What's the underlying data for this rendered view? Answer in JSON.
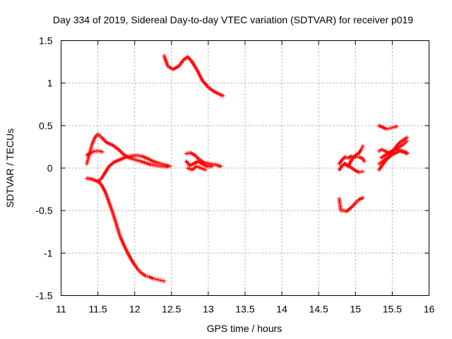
{
  "chart_data": {
    "type": "scatter",
    "title": "Day 334 of 2019, Sidereal Day-to-day VTEC variation (SDTVAR) for receiver p019",
    "xlabel": "GPS time / hours",
    "ylabel": "SDTVAR / TECUs",
    "xlim": [
      11,
      16
    ],
    "ylim": [
      -1.5,
      1.5
    ],
    "grid": true,
    "marker": "plus",
    "color": "#ff0000",
    "x_ticks": [
      11,
      11.5,
      12,
      12.5,
      13,
      13.5,
      14,
      14.5,
      15,
      15.5,
      16
    ],
    "x_tick_labels": [
      "11",
      "11.5",
      "12",
      "12.5",
      "13",
      "13.5",
      "14",
      "14.5",
      "15",
      "15.5",
      "16"
    ],
    "y_ticks": [
      -1.5,
      -1,
      -0.5,
      0,
      0.5,
      1,
      1.5
    ],
    "y_tick_labels": [
      "-1.5",
      "-1",
      "-0.5",
      "0",
      "0.5",
      "1",
      "1.5"
    ],
    "tracks": [
      {
        "name": "track-a",
        "points": [
          [
            11.35,
            0.05
          ],
          [
            11.38,
            0.15
          ],
          [
            11.42,
            0.28
          ],
          [
            11.46,
            0.36
          ],
          [
            11.5,
            0.4
          ],
          [
            11.55,
            0.36
          ],
          [
            11.62,
            0.3
          ],
          [
            11.7,
            0.27
          ],
          [
            11.78,
            0.22
          ],
          [
            11.85,
            0.16
          ],
          [
            11.92,
            0.12
          ],
          [
            12.0,
            0.1
          ],
          [
            12.08,
            0.08
          ],
          [
            12.15,
            0.06
          ],
          [
            12.22,
            0.04
          ],
          [
            12.3,
            0.03
          ],
          [
            12.38,
            0.02
          ],
          [
            12.45,
            0.02
          ]
        ]
      },
      {
        "name": "track-b",
        "points": [
          [
            11.35,
            0.15
          ],
          [
            11.4,
            0.18
          ],
          [
            11.46,
            0.2
          ],
          [
            11.52,
            0.2
          ],
          [
            11.56,
            0.19
          ]
        ]
      },
      {
        "name": "track-c",
        "points": [
          [
            11.35,
            -0.12
          ],
          [
            11.42,
            -0.13
          ],
          [
            11.5,
            -0.16
          ],
          [
            11.55,
            -0.12
          ],
          [
            11.6,
            -0.05
          ],
          [
            11.65,
            0.02
          ],
          [
            11.72,
            0.07
          ],
          [
            11.8,
            0.1
          ],
          [
            11.88,
            0.13
          ],
          [
            11.95,
            0.14
          ],
          [
            12.02,
            0.15
          ],
          [
            12.1,
            0.14
          ],
          [
            12.18,
            0.11
          ],
          [
            12.25,
            0.08
          ],
          [
            12.32,
            0.06
          ],
          [
            12.4,
            0.04
          ],
          [
            12.48,
            0.02
          ]
        ]
      },
      {
        "name": "track-d",
        "points": [
          [
            11.5,
            -0.15
          ],
          [
            11.55,
            -0.2
          ],
          [
            11.6,
            -0.28
          ],
          [
            11.65,
            -0.4
          ],
          [
            11.7,
            -0.52
          ],
          [
            11.75,
            -0.66
          ],
          [
            11.8,
            -0.8
          ],
          [
            11.85,
            -0.9
          ],
          [
            11.9,
            -0.99
          ],
          [
            11.95,
            -1.07
          ],
          [
            12.0,
            -1.14
          ],
          [
            12.05,
            -1.2
          ],
          [
            12.1,
            -1.24
          ],
          [
            12.15,
            -1.27
          ],
          [
            12.2,
            -1.28
          ],
          [
            12.25,
            -1.3
          ],
          [
            12.3,
            -1.31
          ],
          [
            12.35,
            -1.32
          ],
          [
            12.4,
            -1.33
          ]
        ]
      },
      {
        "name": "track-e",
        "points": [
          [
            12.4,
            1.32
          ],
          [
            12.45,
            1.2
          ],
          [
            12.52,
            1.16
          ],
          [
            12.6,
            1.2
          ],
          [
            12.66,
            1.27
          ],
          [
            12.72,
            1.31
          ],
          [
            12.78,
            1.25
          ],
          [
            12.85,
            1.15
          ],
          [
            12.92,
            1.03
          ],
          [
            13.0,
            0.95
          ],
          [
            13.08,
            0.9
          ],
          [
            13.15,
            0.87
          ],
          [
            13.2,
            0.85
          ]
        ]
      },
      {
        "name": "track-f",
        "points": [
          [
            12.7,
            0.17
          ],
          [
            12.76,
            0.18
          ],
          [
            12.82,
            0.15
          ],
          [
            12.88,
            0.1
          ],
          [
            12.95,
            0.06
          ],
          [
            13.02,
            0.05
          ],
          [
            13.1,
            0.04
          ],
          [
            13.17,
            0.02
          ]
        ]
      },
      {
        "name": "track-g",
        "points": [
          [
            12.7,
            0.08
          ],
          [
            12.75,
            0.03
          ],
          [
            12.8,
            0.05
          ],
          [
            12.86,
            0.08
          ],
          [
            12.92,
            0.05
          ],
          [
            12.98,
            0.02
          ],
          [
            13.05,
            0.02
          ]
        ]
      },
      {
        "name": "track-h",
        "points": [
          [
            12.72,
            0.0
          ],
          [
            12.78,
            -0.02
          ],
          [
            12.84,
            0.02
          ],
          [
            12.9,
            0.0
          ],
          [
            12.96,
            -0.02
          ]
        ]
      },
      {
        "name": "track-i",
        "points": [
          [
            14.78,
            0.05
          ],
          [
            14.82,
            0.1
          ],
          [
            14.86,
            0.13
          ],
          [
            14.9,
            0.12
          ],
          [
            14.95,
            0.14
          ],
          [
            15.0,
            0.13
          ],
          [
            15.05,
            0.13
          ],
          [
            15.1,
            0.11
          ],
          [
            15.12,
            0.08
          ]
        ]
      },
      {
        "name": "track-j",
        "points": [
          [
            14.78,
            -0.02
          ],
          [
            14.82,
            0.03
          ],
          [
            14.86,
            0.05
          ],
          [
            14.9,
            0.03
          ],
          [
            14.95,
            0.0
          ],
          [
            15.0,
            -0.03
          ],
          [
            15.05,
            -0.05
          ],
          [
            15.1,
            -0.04
          ]
        ]
      },
      {
        "name": "track-k",
        "points": [
          [
            14.85,
            0.05
          ],
          [
            14.9,
            0.02
          ],
          [
            14.95,
            0.1
          ],
          [
            15.0,
            0.15
          ],
          [
            15.05,
            0.18
          ],
          [
            15.08,
            0.22
          ],
          [
            15.1,
            0.26
          ]
        ]
      },
      {
        "name": "track-l",
        "points": [
          [
            14.78,
            -0.36
          ],
          [
            14.8,
            -0.5
          ],
          [
            14.84,
            -0.5
          ],
          [
            14.88,
            -0.51
          ],
          [
            14.92,
            -0.48
          ],
          [
            14.96,
            -0.45
          ],
          [
            15.0,
            -0.41
          ],
          [
            15.05,
            -0.37
          ],
          [
            15.1,
            -0.35
          ]
        ]
      },
      {
        "name": "track-m",
        "points": [
          [
            15.32,
            0.5
          ],
          [
            15.37,
            0.48
          ],
          [
            15.42,
            0.46
          ],
          [
            15.47,
            0.47
          ],
          [
            15.52,
            0.48
          ],
          [
            15.56,
            0.49
          ]
        ]
      },
      {
        "name": "track-n",
        "points": [
          [
            15.32,
            0.2
          ],
          [
            15.36,
            0.22
          ],
          [
            15.4,
            0.2
          ],
          [
            15.45,
            0.18
          ],
          [
            15.5,
            0.2
          ],
          [
            15.55,
            0.22
          ],
          [
            15.6,
            0.25
          ],
          [
            15.65,
            0.28
          ],
          [
            15.7,
            0.32
          ]
        ]
      },
      {
        "name": "track-o",
        "points": [
          [
            15.32,
            0.05
          ],
          [
            15.36,
            0.07
          ],
          [
            15.4,
            0.1
          ],
          [
            15.45,
            0.13
          ],
          [
            15.5,
            0.16
          ],
          [
            15.55,
            0.18
          ],
          [
            15.6,
            0.2
          ],
          [
            15.65,
            0.2
          ],
          [
            15.7,
            0.18
          ]
        ]
      },
      {
        "name": "track-p",
        "points": [
          [
            15.32,
            -0.02
          ],
          [
            15.36,
            0.03
          ],
          [
            15.4,
            0.08
          ],
          [
            15.45,
            0.12
          ],
          [
            15.5,
            0.18
          ],
          [
            15.55,
            0.25
          ],
          [
            15.6,
            0.3
          ],
          [
            15.65,
            0.33
          ],
          [
            15.7,
            0.36
          ]
        ]
      },
      {
        "name": "track-q",
        "points": [
          [
            15.35,
            0.12
          ],
          [
            15.4,
            0.15
          ],
          [
            15.45,
            0.17
          ],
          [
            15.5,
            0.2
          ],
          [
            15.55,
            0.22
          ],
          [
            15.6,
            0.21
          ],
          [
            15.65,
            0.19
          ],
          [
            15.7,
            0.17
          ]
        ]
      }
    ]
  }
}
